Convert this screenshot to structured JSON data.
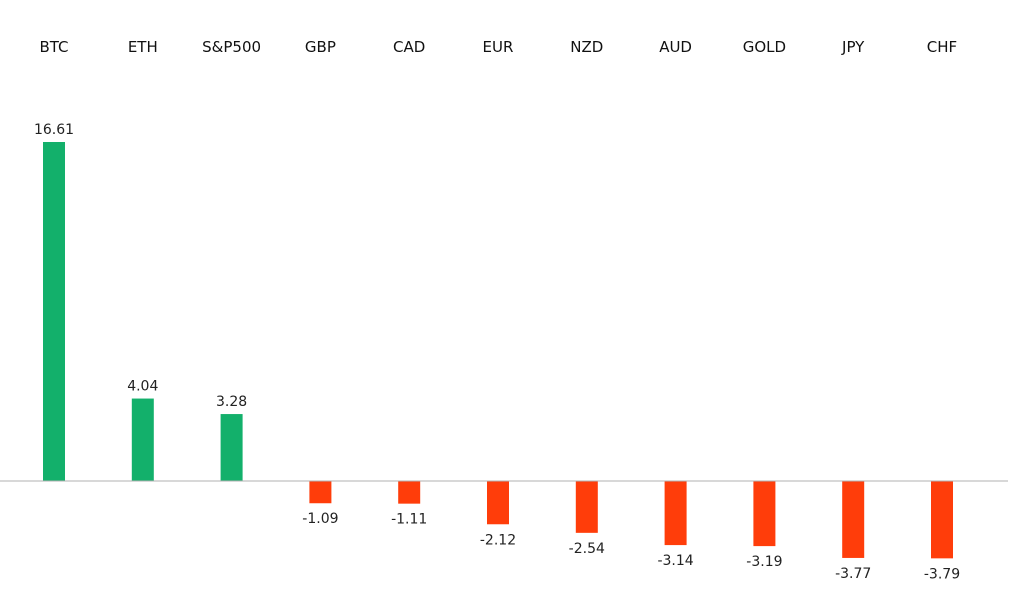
{
  "chart_data": {
    "type": "bar",
    "title": "",
    "xlabel": "",
    "ylabel": "",
    "categories": [
      "BTC",
      "ETH",
      "S&P500",
      "GBP",
      "CAD",
      "EUR",
      "NZD",
      "AUD",
      "GOLD",
      "JPY",
      "CHF"
    ],
    "values": [
      16.61,
      4.04,
      3.28,
      -1.09,
      -1.11,
      -2.12,
      -2.54,
      -3.14,
      -3.19,
      -3.77,
      -3.79
    ],
    "value_labels": [
      "16.61",
      "4.04",
      "3.28",
      "-1.09",
      "-1.11",
      "-2.12",
      "-2.54",
      "-3.14",
      "-3.19",
      "-3.77",
      "-3.79"
    ],
    "ylim": [
      -5.5,
      16.61
    ],
    "grid": false,
    "legend": "none",
    "category_labels_position": "top",
    "colors": {
      "positive": "#13b06b",
      "negative": "#ff3d0a",
      "axis": "#b0b0b0"
    }
  }
}
